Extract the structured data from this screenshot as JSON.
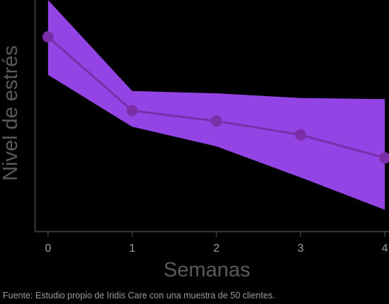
{
  "chart_data": {
    "type": "line",
    "xlabel": "Semanas",
    "ylabel": "Nivel de estrés",
    "x": [
      0,
      1,
      2,
      3,
      4
    ],
    "xticks": [
      "0",
      "1",
      "2",
      "3",
      "4"
    ],
    "xlim": [
      -0.15,
      4.05
    ],
    "ylim": [
      0,
      100
    ],
    "grid": false,
    "series": [
      {
        "values": [
          84,
          52,
          47.5,
          41.5,
          31.5
        ],
        "upper": [
          100,
          60.5,
          59.5,
          57.5,
          57
        ],
        "lower": [
          67.5,
          45,
          36.5,
          23,
          9
        ],
        "color": "#7a2fa8",
        "band_color": "#9444e4"
      }
    ]
  },
  "footnote": "Fuente: Estudio propio de Iridis Care con una muestra de 50 clientes."
}
